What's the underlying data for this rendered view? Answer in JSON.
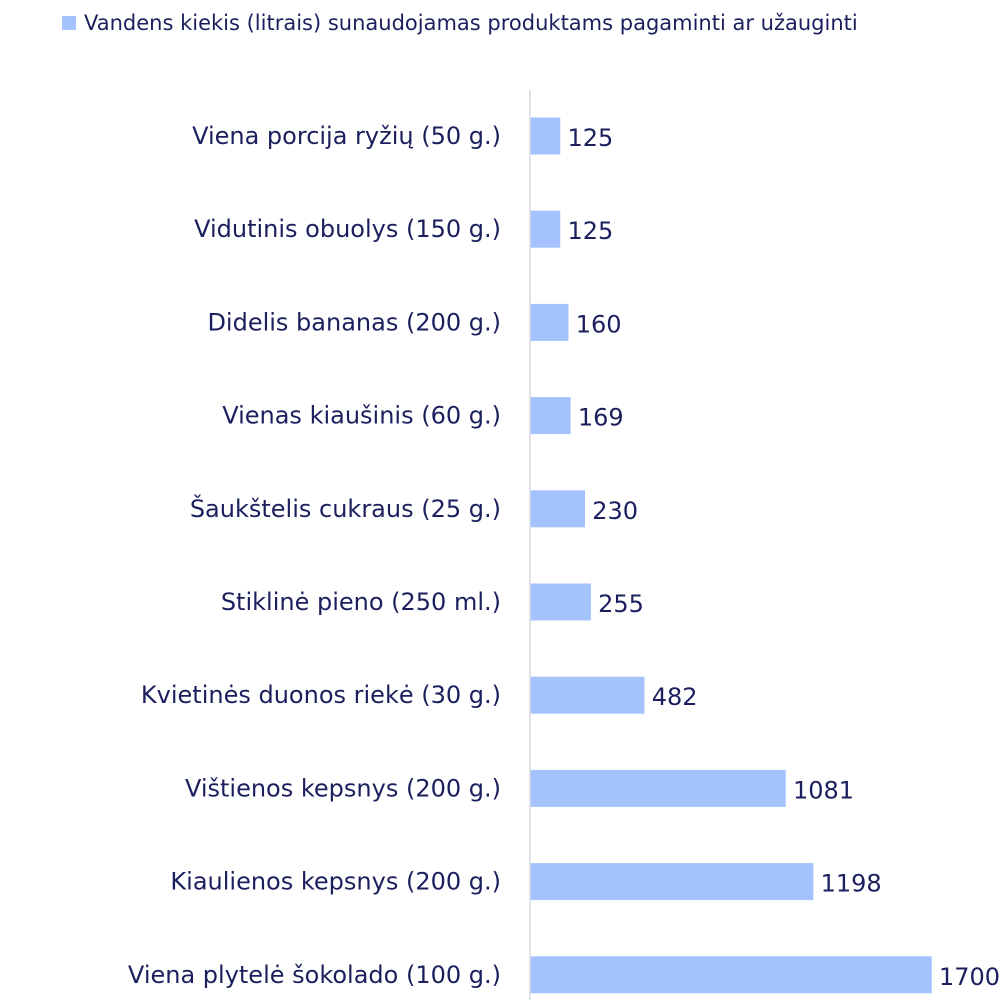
{
  "chart_data": {
    "type": "bar",
    "orientation": "horizontal",
    "categories": [
      "Viena porcija ryžių (50 g.)",
      "Vidutinis obuolys (150 g.)",
      "Didelis bananas (200 g.)",
      "Vienas kiaušinis (60 g.)",
      "Šaukštelis cukraus (25 g.)",
      "Stiklinė pieno (250 ml.)",
      "Kvietinės duonos riekė (30 g.)",
      "Vištienos kepsnys (200 g.)",
      "Kiaulienos kepsnys (200 g.)",
      "Viena plytelė šokolado (100 g.)"
    ],
    "series": [
      {
        "name": "Vandens kiekis (litrais) sunaudojamas produktams pagaminti ar užauginti",
        "values": [
          125,
          125,
          160,
          169,
          230,
          255,
          482,
          1081,
          1198,
          1700
        ],
        "color": "#a4c2fd"
      }
    ],
    "data_labels": true,
    "xlim": [
      0,
      1700
    ],
    "grid": false,
    "legend_position": "top",
    "colors": {
      "text": "#1b1f5e",
      "axis": "#d6d9e0",
      "bar": "#a4c2fd"
    }
  }
}
